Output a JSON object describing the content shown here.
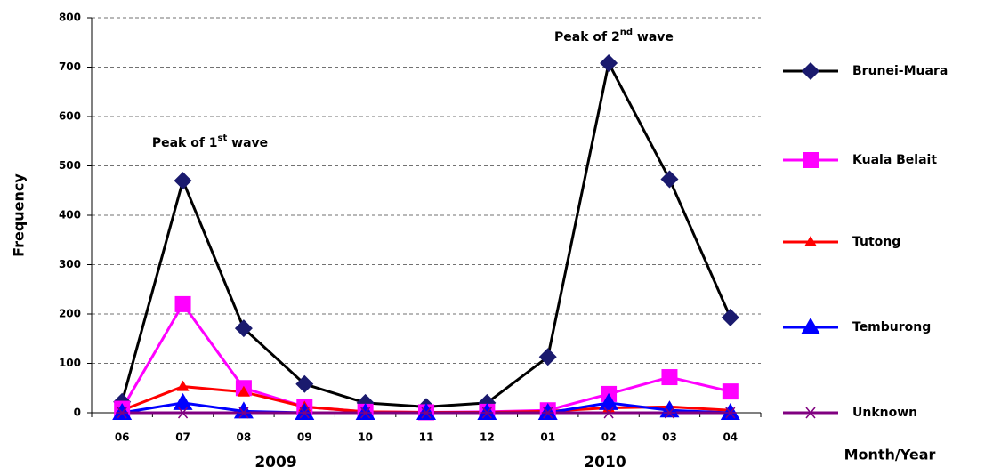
{
  "chart_data": {
    "type": "line",
    "y_label": "Frequency",
    "x_label": "Month/Year",
    "categories": [
      "06",
      "07",
      "08",
      "09",
      "10",
      "11",
      "12",
      "01",
      "02",
      "03",
      "04"
    ],
    "year_labels": [
      "2009",
      "2010"
    ],
    "annotations": [
      {
        "text": "Peak of 1",
        "sup": "st",
        "rest": " wave"
      },
      {
        "text": "Peak of 2",
        "sup": "nd",
        "rest": " wave"
      }
    ],
    "series": [
      {
        "name": "Brunei-Muara",
        "color": "#000000",
        "marker_color": "#1a1a6e",
        "marker": "diamond",
        "values": [
          22,
          470,
          171,
          58,
          20,
          12,
          20,
          113,
          708,
          473,
          193
        ]
      },
      {
        "name": "Kuala Belait",
        "color": "#ff00ff",
        "marker_color": "#ff00ff",
        "marker": "square",
        "values": [
          8,
          220,
          50,
          12,
          2,
          1,
          2,
          5,
          38,
          72,
          43
        ]
      },
      {
        "name": "Tutong",
        "color": "#ff0000",
        "marker_color": "#ff0000",
        "marker": "triangle-small",
        "values": [
          5,
          53,
          42,
          12,
          2,
          1,
          1,
          3,
          10,
          12,
          5
        ]
      },
      {
        "name": "Temburong",
        "color": "#0000ff",
        "marker_color": "#0000ff",
        "marker": "triangle",
        "values": [
          0,
          20,
          3,
          0,
          0,
          0,
          0,
          0,
          20,
          5,
          0
        ]
      },
      {
        "name": "Unknown",
        "color": "#800080",
        "marker_color": "#800080",
        "marker": "star",
        "values": [
          0,
          0,
          0,
          0,
          0,
          0,
          0,
          0,
          0,
          0,
          0
        ]
      }
    ],
    "ylim": [
      0,
      800
    ],
    "yticks": [
      0,
      100,
      200,
      300,
      400,
      500,
      600,
      700,
      800
    ],
    "grid": true
  }
}
